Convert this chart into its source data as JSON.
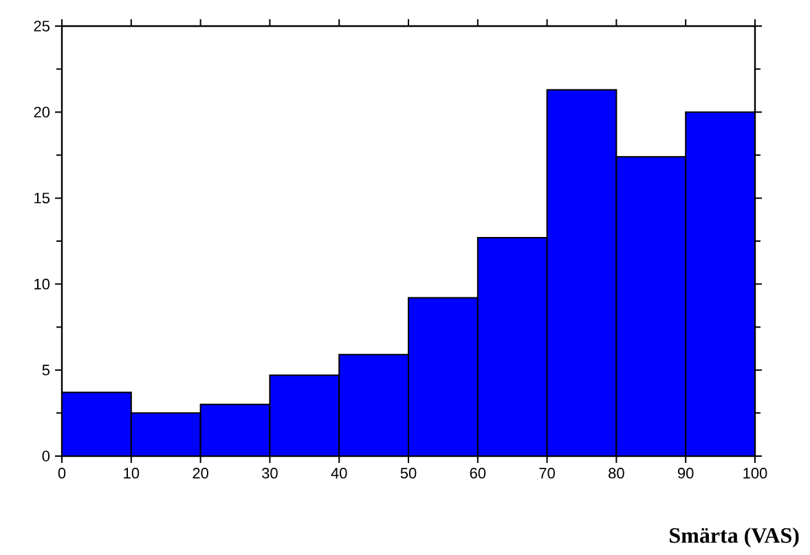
{
  "chart_data": {
    "type": "histogram",
    "xlabel": "**Smärta (VAS)**",
    "bins": [
      0,
      10,
      20,
      30,
      40,
      50,
      60,
      70,
      80,
      90,
      100
    ],
    "values": [
      3.7,
      2.5,
      3.0,
      4.7,
      5.9,
      9.2,
      12.7,
      21.3,
      17.4,
      20.0
    ],
    "color": "#0000ff",
    "xlim": [
      0,
      100
    ],
    "ylim": [
      0,
      25
    ],
    "xticks": [
      0,
      10,
      20,
      30,
      40,
      50,
      60,
      70,
      80,
      90,
      100
    ],
    "yticks": [
      0,
      5,
      10,
      15,
      20,
      25
    ],
    "grid": false
  }
}
